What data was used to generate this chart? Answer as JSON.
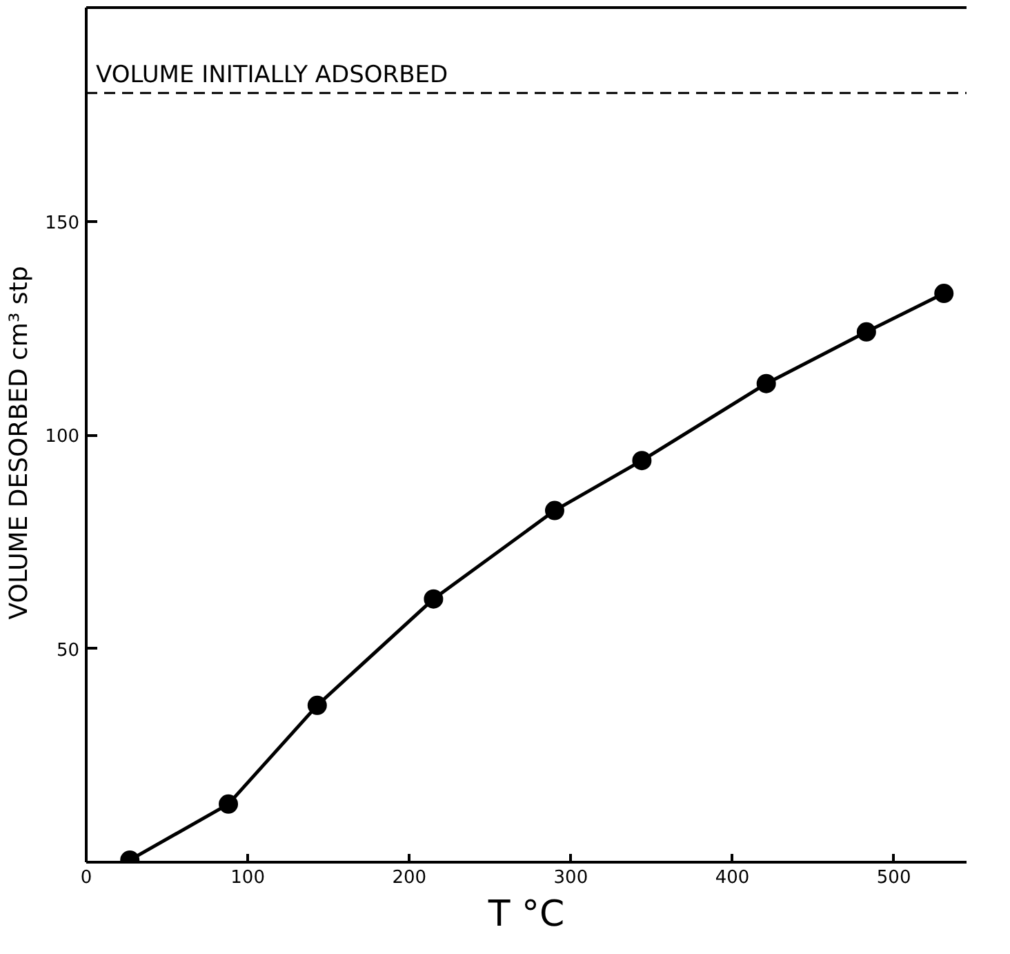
{
  "chart_data": {
    "type": "line",
    "xlabel": "T °C",
    "ylabel": "VOLUME  DESORBED  cm³ stp",
    "x": [
      27,
      88,
      143,
      215,
      290,
      344,
      421,
      483,
      531
    ],
    "series": [
      {
        "color": "#000000",
        "values": [
          0.5,
          13.6,
          36.7,
          61.6,
          82.3,
          94.0,
          112,
          124.1,
          133.1
        ]
      }
    ],
    "marker": "circle",
    "line_style": "solid",
    "grid": false,
    "xlim": [
      0,
      545
    ],
    "ylim": [
      0,
      200
    ],
    "xticks": [
      0,
      100,
      200,
      300,
      400,
      500
    ],
    "yticks": [
      50,
      100,
      150
    ],
    "ref_lines": [
      {
        "axis": "y",
        "value": 180,
        "label": "VOLUME INITIALLY ADSORBED",
        "line_style": "dashed",
        "color": "#000000"
      }
    ]
  }
}
